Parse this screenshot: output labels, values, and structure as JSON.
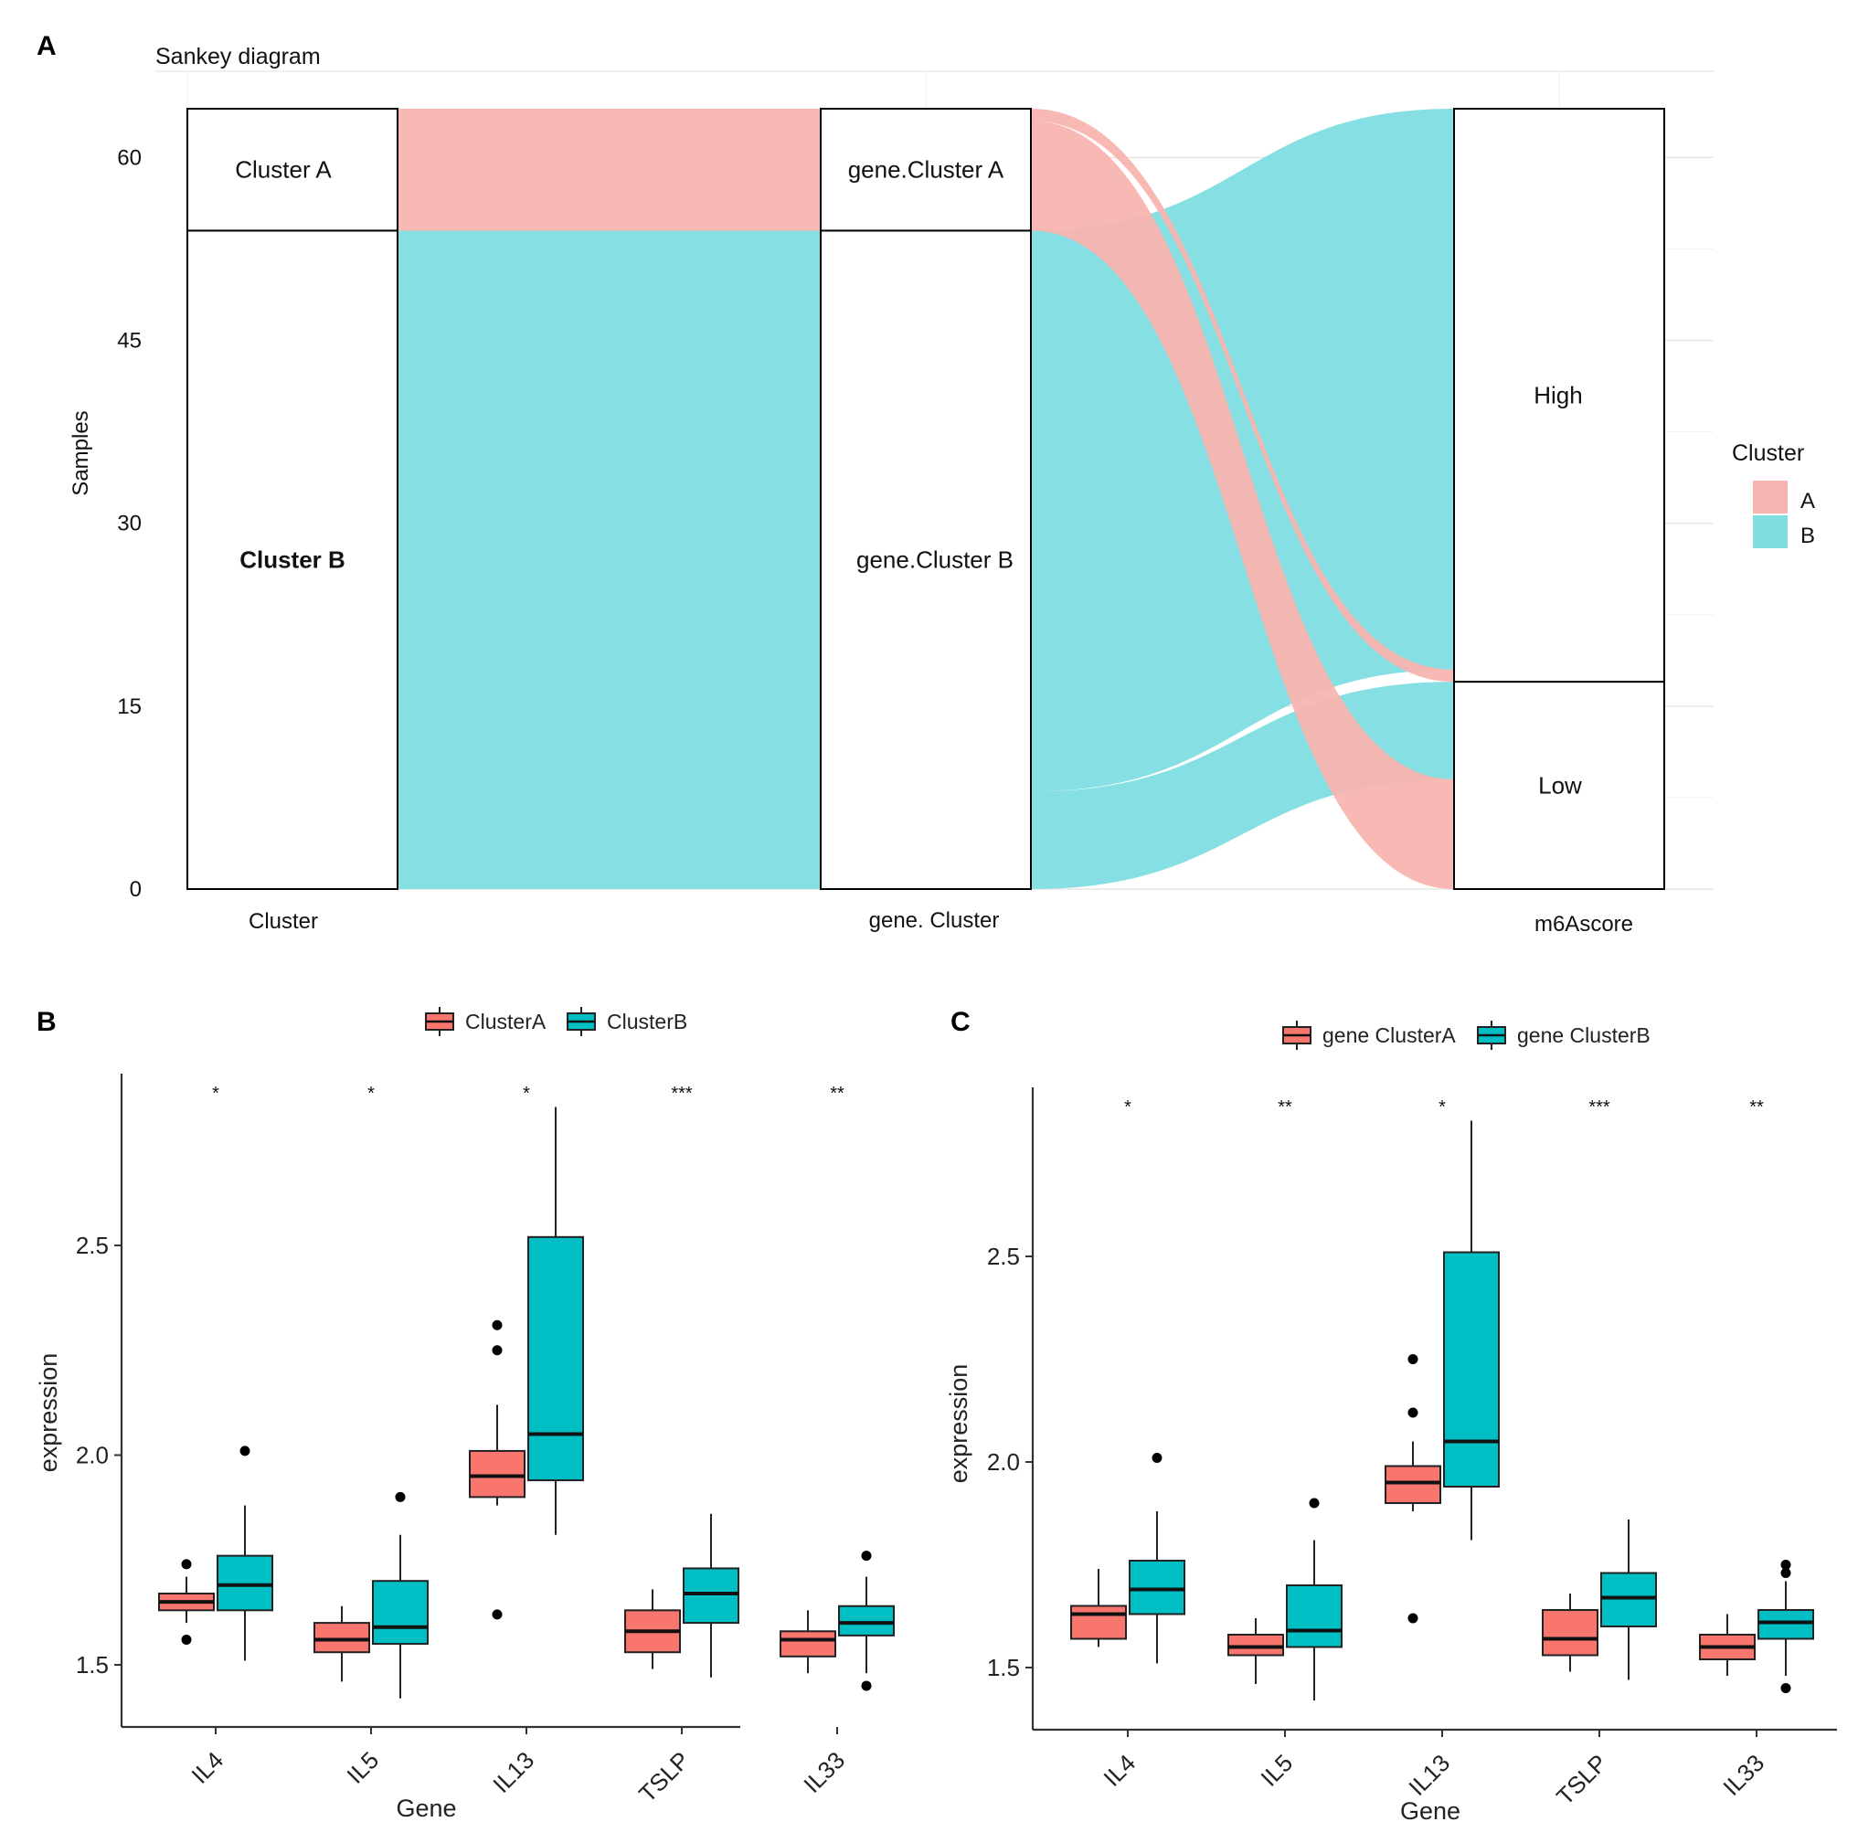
{
  "colors": {
    "A": "#F8766D",
    "B": "#00BFC4",
    "A_flow": "#F8B4B0",
    "B_flow": "#7FDDE0",
    "grid": "#E6E6E6"
  },
  "chart_data": [
    {
      "panel": "A",
      "type": "sankey",
      "title": "Sankey diagram",
      "ylabel": "Samples",
      "ylim": [
        0,
        64
      ],
      "yticks": [
        0,
        15,
        30,
        45,
        60
      ],
      "axes": [
        "Cluster",
        "gene. Cluster",
        "m6Ascore"
      ],
      "nodes": [
        {
          "axis": 0,
          "label": "Cluster A",
          "value": 10
        },
        {
          "axis": 0,
          "label": "Cluster B",
          "value": 54
        },
        {
          "axis": 1,
          "label": "gene.Cluster A",
          "value": 10
        },
        {
          "axis": 1,
          "label": "gene.Cluster B",
          "value": 54
        },
        {
          "axis": 2,
          "label": "High",
          "value": 47
        },
        {
          "axis": 2,
          "label": "Low",
          "value": 17
        }
      ],
      "flows": [
        {
          "stage": 0,
          "from": "Cluster A",
          "to": "gene.Cluster A",
          "value": 10,
          "group": "A"
        },
        {
          "stage": 0,
          "from": "Cluster B",
          "to": "gene.Cluster B",
          "value": 54,
          "group": "B"
        },
        {
          "stage": 1,
          "from": "gene.Cluster A",
          "to": "High",
          "value": 1,
          "group": "A"
        },
        {
          "stage": 1,
          "from": "gene.Cluster A",
          "to": "Low",
          "value": 9,
          "group": "A"
        },
        {
          "stage": 1,
          "from": "gene.Cluster B",
          "to": "High",
          "value": 46,
          "group": "B"
        },
        {
          "stage": 1,
          "from": "gene.Cluster B",
          "to": "Low",
          "value": 8,
          "group": "B"
        }
      ],
      "legend": {
        "title": "Cluster",
        "entries": [
          "A",
          "B"
        ]
      }
    },
    {
      "panel": "B",
      "type": "box",
      "xlabel": "Gene",
      "ylabel": "expression",
      "ylim": [
        1.35,
        2.9
      ],
      "yticks": [
        "1.5",
        "2.0",
        "2.5"
      ],
      "categories": [
        "IL4",
        "IL5",
        "IL13",
        "TSLP",
        "IL33"
      ],
      "significance": [
        "*",
        "*",
        "*",
        "***",
        "**"
      ],
      "legend": [
        "ClusterA",
        "ClusterB"
      ],
      "series": [
        {
          "name": "ClusterA",
          "boxes": [
            {
              "lower_whisker": 1.6,
              "q1": 1.63,
              "median": 1.65,
              "q3": 1.67,
              "upper_whisker": 1.71,
              "outliers": [
                1.56,
                1.74
              ]
            },
            {
              "lower_whisker": 1.46,
              "q1": 1.53,
              "median": 1.56,
              "q3": 1.6,
              "upper_whisker": 1.64,
              "outliers": []
            },
            {
              "lower_whisker": 1.88,
              "q1": 1.9,
              "median": 1.95,
              "q3": 2.01,
              "upper_whisker": 2.12,
              "outliers": [
                1.62,
                2.25,
                2.31
              ]
            },
            {
              "lower_whisker": 1.49,
              "q1": 1.53,
              "median": 1.58,
              "q3": 1.63,
              "upper_whisker": 1.68,
              "outliers": []
            },
            {
              "lower_whisker": 1.48,
              "q1": 1.52,
              "median": 1.56,
              "q3": 1.58,
              "upper_whisker": 1.63,
              "outliers": []
            }
          ]
        },
        {
          "name": "ClusterB",
          "boxes": [
            {
              "lower_whisker": 1.51,
              "q1": 1.63,
              "median": 1.69,
              "q3": 1.76,
              "upper_whisker": 1.88,
              "outliers": [
                2.01
              ]
            },
            {
              "lower_whisker": 1.42,
              "q1": 1.55,
              "median": 1.59,
              "q3": 1.7,
              "upper_whisker": 1.81,
              "outliers": [
                1.9
              ]
            },
            {
              "lower_whisker": 1.81,
              "q1": 1.94,
              "median": 2.05,
              "q3": 2.52,
              "upper_whisker": 2.83,
              "outliers": []
            },
            {
              "lower_whisker": 1.47,
              "q1": 1.6,
              "median": 1.67,
              "q3": 1.73,
              "upper_whisker": 1.86,
              "outliers": []
            },
            {
              "lower_whisker": 1.48,
              "q1": 1.57,
              "median": 1.6,
              "q3": 1.64,
              "upper_whisker": 1.71,
              "outliers": [
                1.45,
                1.76
              ]
            }
          ]
        }
      ]
    },
    {
      "panel": "C",
      "type": "box",
      "xlabel": "Gene",
      "ylabel": "expression",
      "ylim": [
        1.35,
        2.9
      ],
      "yticks": [
        "1.5",
        "2.0",
        "2.5"
      ],
      "categories": [
        "IL4",
        "IL5",
        "IL13",
        "TSLP",
        "IL33"
      ],
      "significance": [
        "*",
        "**",
        "*",
        "***",
        "**"
      ],
      "legend": [
        "gene ClusterA",
        "gene ClusterB"
      ],
      "series": [
        {
          "name": "gene ClusterA",
          "boxes": [
            {
              "lower_whisker": 1.55,
              "q1": 1.57,
              "median": 1.63,
              "q3": 1.65,
              "upper_whisker": 1.74,
              "outliers": []
            },
            {
              "lower_whisker": 1.46,
              "q1": 1.53,
              "median": 1.55,
              "q3": 1.58,
              "upper_whisker": 1.62,
              "outliers": []
            },
            {
              "lower_whisker": 1.88,
              "q1": 1.9,
              "median": 1.95,
              "q3": 1.99,
              "upper_whisker": 2.05,
              "outliers": [
                1.62,
                2.12,
                2.25
              ]
            },
            {
              "lower_whisker": 1.49,
              "q1": 1.53,
              "median": 1.57,
              "q3": 1.64,
              "upper_whisker": 1.68,
              "outliers": []
            },
            {
              "lower_whisker": 1.48,
              "q1": 1.52,
              "median": 1.55,
              "q3": 1.58,
              "upper_whisker": 1.63,
              "outliers": []
            }
          ]
        },
        {
          "name": "gene ClusterB",
          "boxes": [
            {
              "lower_whisker": 1.51,
              "q1": 1.63,
              "median": 1.69,
              "q3": 1.76,
              "upper_whisker": 1.88,
              "outliers": [
                2.01
              ]
            },
            {
              "lower_whisker": 1.42,
              "q1": 1.55,
              "median": 1.59,
              "q3": 1.7,
              "upper_whisker": 1.81,
              "outliers": [
                1.9
              ]
            },
            {
              "lower_whisker": 1.81,
              "q1": 1.94,
              "median": 2.05,
              "q3": 2.51,
              "upper_whisker": 2.83,
              "outliers": []
            },
            {
              "lower_whisker": 1.47,
              "q1": 1.6,
              "median": 1.67,
              "q3": 1.73,
              "upper_whisker": 1.86,
              "outliers": []
            },
            {
              "lower_whisker": 1.48,
              "q1": 1.57,
              "median": 1.61,
              "q3": 1.64,
              "upper_whisker": 1.71,
              "outliers": [
                1.45,
                1.73,
                1.75
              ]
            }
          ]
        }
      ]
    }
  ]
}
